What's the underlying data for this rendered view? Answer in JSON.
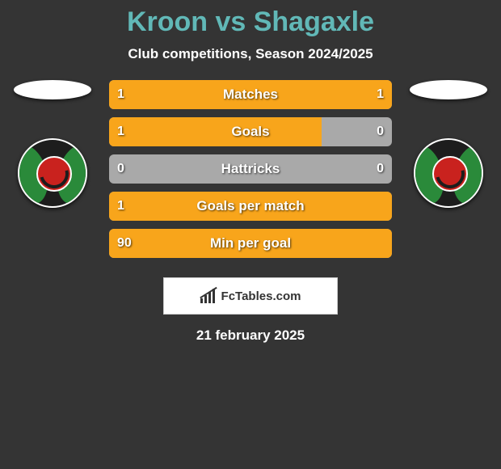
{
  "title": "Kroon vs Shagaxle",
  "subtitle": "Club competitions, Season 2024/2025",
  "colors": {
    "background": "#343434",
    "title": "#61b8b7",
    "text": "#ffffff",
    "bar_fill": "#f8a51b",
    "bar_empty": "#a9a9a9"
  },
  "bars": [
    {
      "label": "Matches",
      "left_val": "1",
      "right_val": "1",
      "left_pct": 50,
      "right_pct": 50
    },
    {
      "label": "Goals",
      "left_val": "1",
      "right_val": "0",
      "left_pct": 75,
      "right_pct": 0
    },
    {
      "label": "Hattricks",
      "left_val": "0",
      "right_val": "0",
      "left_pct": 0,
      "right_pct": 0
    },
    {
      "label": "Goals per match",
      "left_val": "1",
      "right_val": "",
      "left_pct": 100,
      "right_pct": 0
    },
    {
      "label": "Min per goal",
      "left_val": "90",
      "right_val": "",
      "left_pct": 100,
      "right_pct": 0
    }
  ],
  "footer_logo": "FcTables.com",
  "footer_date": "21 february 2025"
}
